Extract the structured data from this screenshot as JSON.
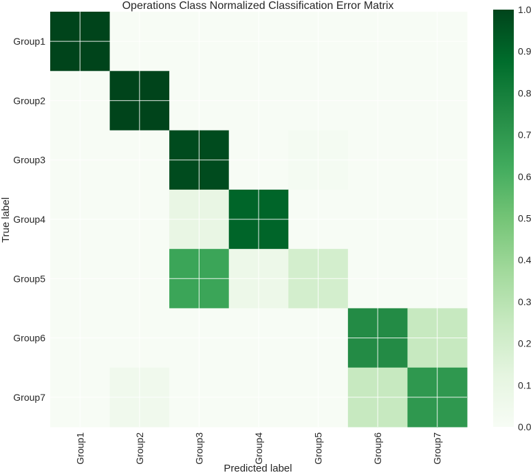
{
  "chart_data": {
    "type": "heatmap",
    "title": "Operations Class Normalized Classification Error Matrix",
    "xlabel": "Predicted label",
    "ylabel": "True label",
    "x_categories": [
      "Group1",
      "Group2",
      "Group3",
      "Group4",
      "Group5",
      "Group6",
      "Group7"
    ],
    "y_categories": [
      "Group1",
      "Group2",
      "Group3",
      "Group4",
      "Group5",
      "Group6",
      "Group7"
    ],
    "values": [
      [
        1.0,
        0.0,
        0.0,
        0.0,
        0.0,
        0.0,
        0.0
      ],
      [
        0.0,
        1.0,
        0.0,
        0.0,
        0.0,
        0.0,
        0.0
      ],
      [
        0.0,
        0.0,
        0.98,
        0.0,
        0.02,
        0.0,
        0.0
      ],
      [
        0.0,
        0.0,
        0.1,
        0.9,
        0.0,
        0.0,
        0.0
      ],
      [
        0.0,
        0.0,
        0.65,
        0.07,
        0.2,
        0.0,
        0.0
      ],
      [
        0.0,
        0.0,
        0.0,
        0.0,
        0.0,
        0.75,
        0.25
      ],
      [
        0.0,
        0.05,
        0.0,
        0.0,
        0.0,
        0.25,
        0.7
      ]
    ],
    "vmin": 0.0,
    "vmax": 1.0,
    "colormap": "Greens",
    "colorbar_ticks": [
      "0.0",
      "0.1",
      "0.2",
      "0.3",
      "0.4",
      "0.5",
      "0.6",
      "0.7",
      "0.8",
      "0.9",
      "1.0"
    ],
    "grid": true
  }
}
